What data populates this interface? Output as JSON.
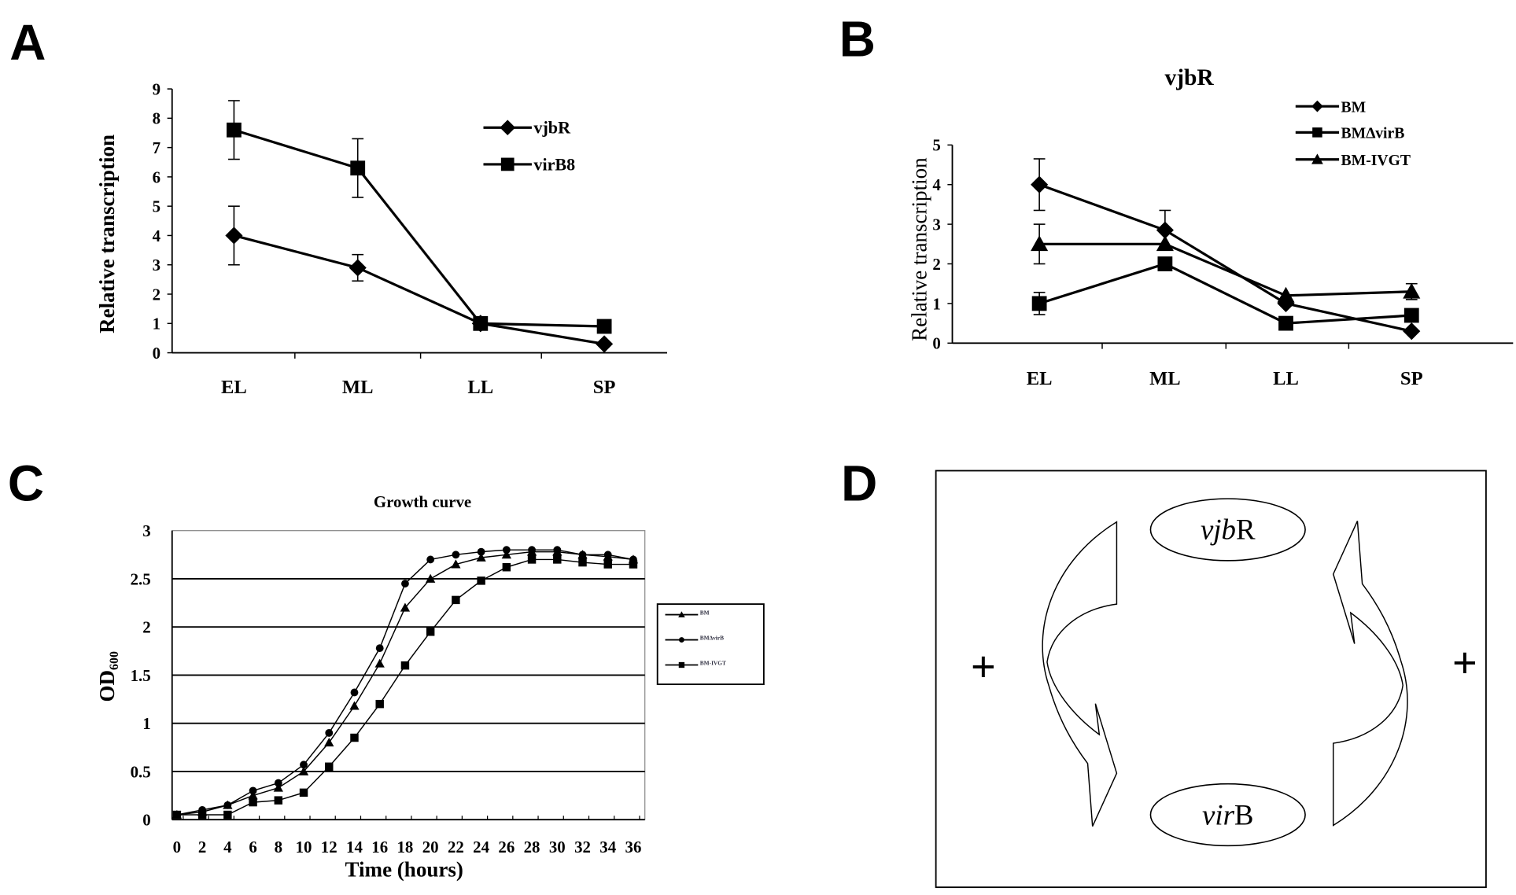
{
  "panel_letters": [
    "A",
    "B",
    "C",
    "D"
  ],
  "chart_data": [
    {
      "panel": "A",
      "type": "line",
      "title": "",
      "xlabel": "",
      "ylabel": "Relative transcription",
      "categories": [
        "EL",
        "ML",
        "LL",
        "SP"
      ],
      "ylim": [
        0,
        9
      ],
      "yticks": [
        0,
        1,
        2,
        3,
        4,
        5,
        6,
        7,
        8,
        9
      ],
      "grid": false,
      "legend": "top-right",
      "series": [
        {
          "name": "vjbR",
          "marker": "diamond",
          "values": [
            4.0,
            2.9,
            1.0,
            0.3
          ],
          "errors": [
            1.0,
            0.45,
            0,
            0
          ]
        },
        {
          "name": "virB8",
          "marker": "square",
          "values": [
            7.6,
            6.3,
            1.0,
            0.9
          ],
          "errors": [
            1.0,
            1.0,
            0,
            0
          ]
        }
      ]
    },
    {
      "panel": "B",
      "type": "line",
      "title": "vjbR",
      "xlabel": "",
      "ylabel": "Relative transcription",
      "categories": [
        "EL",
        "ML",
        "LL",
        "SP"
      ],
      "ylim": [
        0,
        5
      ],
      "yticks": [
        0,
        1,
        2,
        3,
        4,
        5
      ],
      "grid": false,
      "legend": "top-right",
      "series": [
        {
          "name": "BM",
          "marker": "diamond",
          "values": [
            4.0,
            2.85,
            1.0,
            0.3
          ],
          "errors": [
            0.65,
            0.5,
            0,
            0
          ]
        },
        {
          "name": "BM∆virB",
          "marker": "square",
          "values": [
            1.0,
            2.0,
            0.5,
            0.7
          ],
          "errors": [
            0.28,
            0,
            0,
            0
          ]
        },
        {
          "name": "BM-IVGT",
          "marker": "triangle",
          "values": [
            2.5,
            2.5,
            1.2,
            1.3
          ],
          "errors": [
            0.5,
            0,
            0,
            0.2
          ]
        }
      ]
    },
    {
      "panel": "C",
      "type": "line",
      "title": "Growth curve",
      "xlabel": "Time (hours)",
      "ylabel": "OD600",
      "ylabel_main": "OD",
      "ylabel_sub": "600",
      "x": [
        0,
        2,
        4,
        6,
        8,
        10,
        12,
        14,
        16,
        18,
        20,
        22,
        24,
        26,
        28,
        30,
        32,
        34,
        36
      ],
      "xlim": [
        0,
        36
      ],
      "ylim": [
        0,
        3
      ],
      "yticks": [
        0,
        0.5,
        1,
        1.5,
        2,
        2.5,
        3
      ],
      "grid": true,
      "legend": "right",
      "series": [
        {
          "name": "BM",
          "marker": "triangle",
          "values": [
            0.05,
            0.08,
            0.15,
            0.25,
            0.33,
            0.5,
            0.8,
            1.18,
            1.62,
            2.2,
            2.5,
            2.65,
            2.72,
            2.75,
            2.78,
            2.78,
            2.75,
            2.73,
            2.7
          ]
        },
        {
          "name": "BM∆virB",
          "marker": "circle",
          "values": [
            0.05,
            0.1,
            0.15,
            0.3,
            0.38,
            0.57,
            0.9,
            1.32,
            1.78,
            2.45,
            2.7,
            2.75,
            2.78,
            2.8,
            2.8,
            2.8,
            2.75,
            2.75,
            2.7
          ]
        },
        {
          "name": "BM-IVGT",
          "marker": "square",
          "values": [
            0.05,
            0.05,
            0.05,
            0.18,
            0.2,
            0.28,
            0.55,
            0.85,
            1.2,
            1.6,
            1.95,
            2.28,
            2.48,
            2.62,
            2.7,
            2.7,
            2.67,
            2.65,
            2.65
          ]
        }
      ]
    }
  ],
  "diagram": {
    "top_node_italic": "vjb",
    "top_node_rest": "R",
    "bottom_node_italic": "vir",
    "bottom_node_rest": "B",
    "left_sign": "+",
    "right_sign": "+"
  }
}
